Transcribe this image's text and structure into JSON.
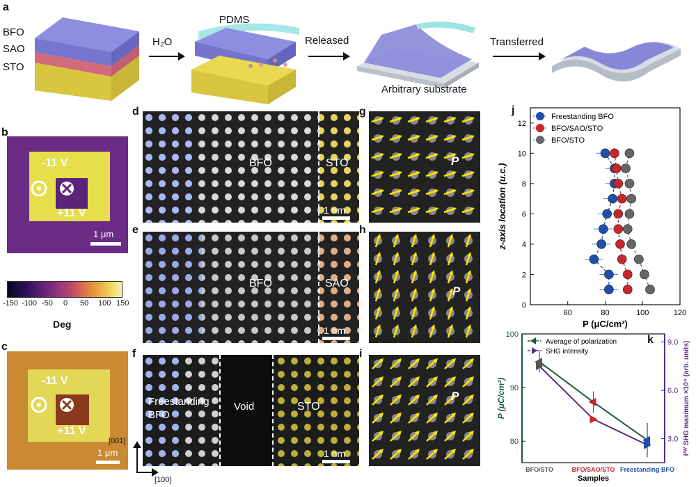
{
  "panel_a": {
    "label": "a",
    "layers": [
      "BFO",
      "SAO",
      "STO"
    ],
    "steps": [
      "H₂O",
      "Released",
      "Transferred"
    ],
    "pdms": "PDMS",
    "substrate": "Arbitrary substrate"
  },
  "panel_b": {
    "label": "b",
    "neg_bias": "-11 V",
    "pos_bias": "+11 V",
    "scale": "1 μm"
  },
  "colorbar": {
    "ticks": [
      "-150",
      "-100",
      "-50",
      "0",
      "50",
      "100",
      "150"
    ],
    "label": "Deg"
  },
  "panel_c": {
    "label": "c",
    "neg_bias": "-11 V",
    "pos_bias": "+11 V",
    "scale": "1 μm"
  },
  "panel_d": {
    "label": "d",
    "left": "BFO",
    "right": "STO",
    "scale": "1 nm"
  },
  "panel_e": {
    "label": "e",
    "left": "BFO",
    "right": "SAO",
    "scale": "1 nm"
  },
  "panel_f": {
    "label": "f",
    "left": "Freestanding BFO",
    "middle": "Void",
    "right": "STO",
    "scale": "1 nm",
    "axis_v": "[001]",
    "axis_h": "[100]"
  },
  "panel_g": {
    "label": "g",
    "p": "P"
  },
  "panel_h": {
    "label": "h",
    "p": "P"
  },
  "panel_i": {
    "label": "i",
    "p": "P"
  },
  "chart_data": [
    {
      "panel": "j",
      "type": "scatter",
      "xlabel": "P (μC/cm²)",
      "ylabel": "z-axis location (u.c.)",
      "xlim": [
        40,
        120
      ],
      "ylim": [
        0,
        13
      ],
      "xticks": [
        "60",
        "80",
        "100",
        "120"
      ],
      "yticks": [
        "0",
        "2",
        "4",
        "6",
        "8",
        "10",
        "12"
      ],
      "legend": [
        "Freestanding BFO",
        "BFO/SAO/STO",
        "BFO/STO"
      ],
      "colors": [
        "#1f4fa8",
        "#c8262b",
        "#666666"
      ],
      "series": [
        {
          "name": "Freestanding BFO",
          "points": [
            [
              82,
              1
            ],
            [
              82,
              2
            ],
            [
              74,
              3
            ],
            [
              78,
              4
            ],
            [
              79,
              5
            ],
            [
              81,
              6
            ],
            [
              84,
              7
            ],
            [
              85,
              8
            ],
            [
              85,
              9
            ],
            [
              80,
              10
            ]
          ]
        },
        {
          "name": "BFO/SAO/STO",
          "points": [
            [
              92,
              1
            ],
            [
              92,
              2
            ],
            [
              89,
              3
            ],
            [
              88,
              4
            ],
            [
              87,
              5
            ],
            [
              87,
              6
            ],
            [
              89,
              7
            ],
            [
              87,
              8
            ],
            [
              86,
              9
            ],
            [
              85,
              10
            ]
          ]
        },
        {
          "name": "BFO/STO",
          "points": [
            [
              104,
              1
            ],
            [
              101,
              2
            ],
            [
              98,
              3
            ],
            [
              94,
              4
            ],
            [
              92,
              5
            ],
            [
              93,
              6
            ],
            [
              94,
              7
            ],
            [
              93,
              8
            ],
            [
              91,
              9
            ],
            [
              93,
              10
            ]
          ]
        }
      ]
    },
    {
      "panel": "k",
      "type": "line",
      "xlabel": "Samples",
      "ylabel": "P (μC/cm²)",
      "y2label": "I²ᵂ SHG maximum ×10⁴ (arb. units)",
      "categories": [
        "BFO/STO",
        "BFO/SAO/STO",
        "Freestanding BFO"
      ],
      "category_colors": [
        "#555555",
        "#c8262b",
        "#1f4fa8"
      ],
      "ylim": [
        76,
        100
      ],
      "y2lim": [
        1.5,
        9.5
      ],
      "yticks": [
        "80",
        "90",
        "100"
      ],
      "y2ticks": [
        "3.0",
        "6.0",
        "9.0"
      ],
      "legend": [
        "Average of polarization",
        "SHG intensity"
      ],
      "series": [
        {
          "name": "Average of polarization",
          "color": "#1e5b3a",
          "values": [
            94.8,
            87.3,
            80.2
          ],
          "errors": [
            2.0,
            2.0,
            3.2
          ]
        },
        {
          "name": "SHG intensity",
          "color": "#5b2a86",
          "values": [
            7.5,
            4.2,
            2.6
          ]
        }
      ]
    }
  ]
}
